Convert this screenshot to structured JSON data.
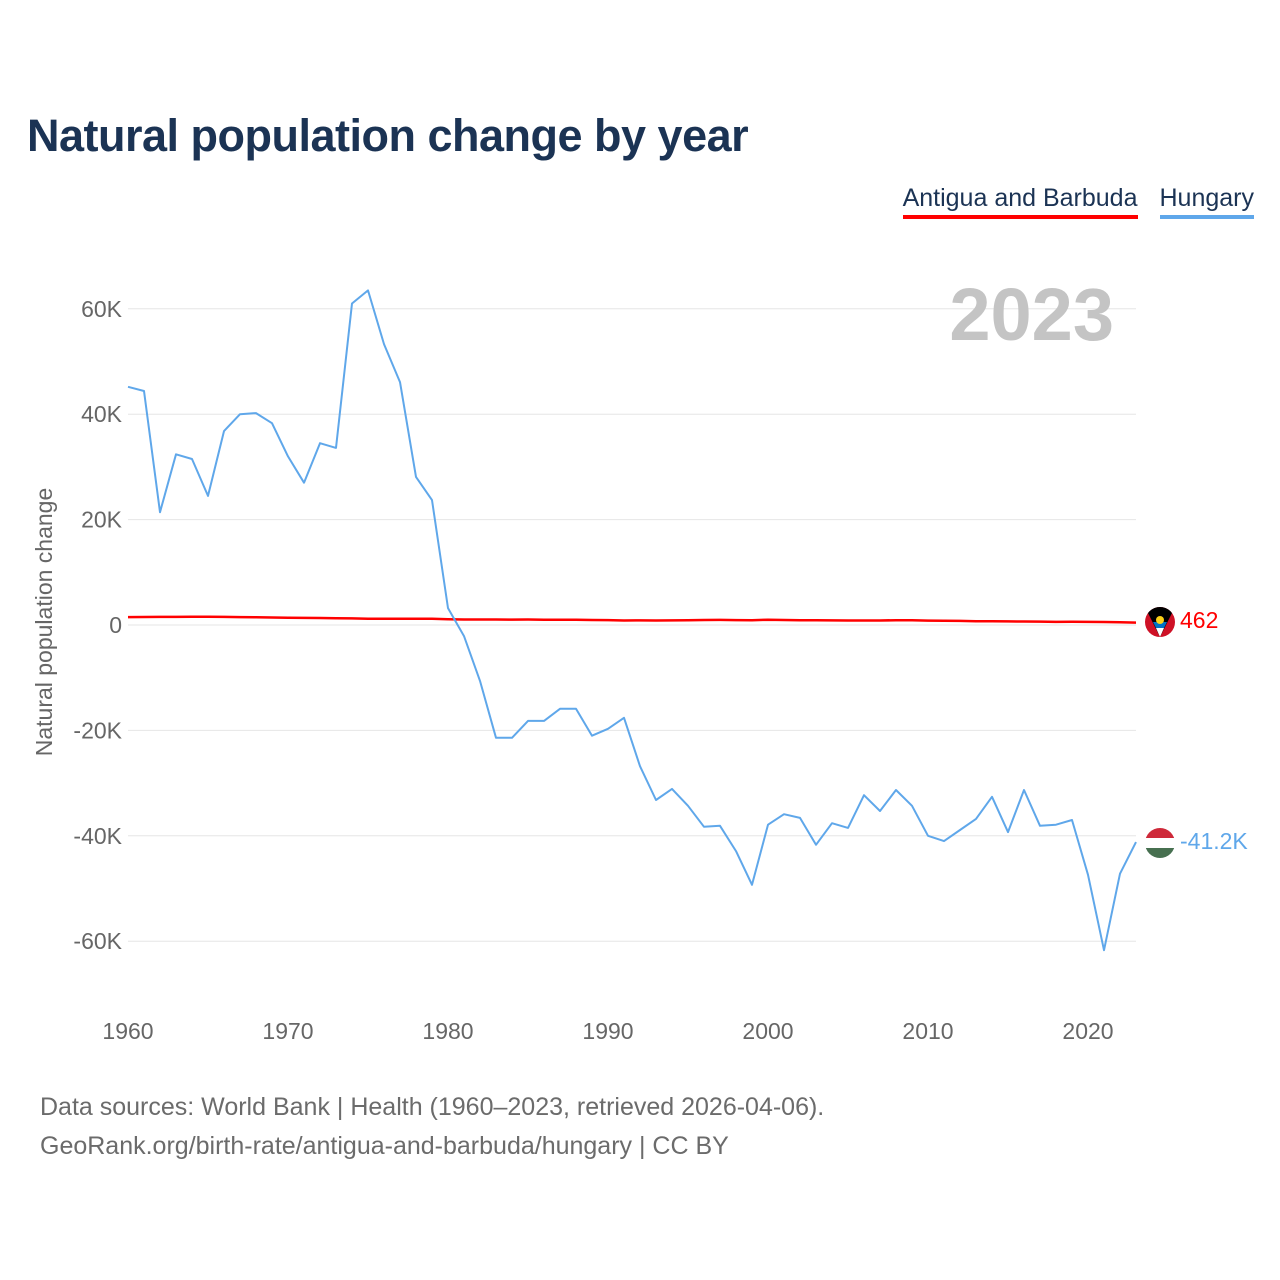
{
  "title": "Natural population change by year",
  "footer": {
    "line1": "Data sources: World Bank | Health (1960–2023, retrieved 2026-04-06).",
    "line2": "GeoRank.org/birth-rate/antigua-and-barbuda/hungary | CC BY"
  },
  "chart_data": {
    "type": "line",
    "title": "Natural population change by year",
    "ylabel": "Natural population change",
    "xlabel": "",
    "year_label": "2023",
    "ylim": [
      -70000,
      70000
    ],
    "xlim": [
      1960,
      2023
    ],
    "yticks": [
      60000,
      40000,
      20000,
      0,
      -20000,
      -40000,
      -60000
    ],
    "ytick_labels": [
      "60K",
      "40K",
      "20K",
      "0",
      "-20K",
      "-40K",
      "-60K"
    ],
    "xticks": [
      1960,
      1970,
      1980,
      1990,
      2000,
      2010,
      2020
    ],
    "xtick_labels": [
      "1960",
      "1970",
      "1980",
      "1990",
      "2000",
      "2010",
      "2020"
    ],
    "grid": true,
    "legend_position": "top-right",
    "x": [
      1960,
      1961,
      1962,
      1963,
      1964,
      1965,
      1966,
      1967,
      1968,
      1969,
      1970,
      1971,
      1972,
      1973,
      1974,
      1975,
      1976,
      1977,
      1978,
      1979,
      1980,
      1981,
      1982,
      1983,
      1984,
      1985,
      1986,
      1987,
      1988,
      1989,
      1990,
      1991,
      1992,
      1993,
      1994,
      1995,
      1996,
      1997,
      1998,
      1999,
      2000,
      2001,
      2002,
      2003,
      2004,
      2005,
      2006,
      2007,
      2008,
      2009,
      2010,
      2011,
      2012,
      2013,
      2014,
      2015,
      2016,
      2017,
      2018,
      2019,
      2020,
      2021,
      2022,
      2023
    ],
    "series": [
      {
        "name": "Antigua and Barbuda",
        "color": "#ff0000",
        "end_label": "462",
        "values": [
          1500,
          1520,
          1530,
          1540,
          1550,
          1550,
          1530,
          1500,
          1460,
          1420,
          1380,
          1350,
          1320,
          1290,
          1250,
          1200,
          1180,
          1200,
          1180,
          1200,
          1100,
          1050,
          1050,
          1040,
          1030,
          1050,
          1000,
          980,
          980,
          950,
          930,
          850,
          870,
          850,
          870,
          900,
          950,
          960,
          930,
          900,
          1000,
          950,
          920,
          900,
          880,
          860,
          850,
          860,
          920,
          900,
          830,
          800,
          780,
          720,
          700,
          690,
          660,
          640,
          580,
          600,
          590,
          560,
          520,
          462
        ]
      },
      {
        "name": "Hungary",
        "color": "#5fa7ea",
        "end_label": "-41.2K",
        "values": [
          45200,
          44400,
          21400,
          32400,
          31500,
          24500,
          36800,
          40000,
          40200,
          38300,
          32000,
          27000,
          34500,
          33600,
          61000,
          63500,
          53300,
          46100,
          28100,
          23700,
          3200,
          -2100,
          -10600,
          -21400,
          -21400,
          -18200,
          -18200,
          -15900,
          -15900,
          -21000,
          -19700,
          -17600,
          -26800,
          -33200,
          -31100,
          -34300,
          -38300,
          -38100,
          -42900,
          -49300,
          -37900,
          -35900,
          -36600,
          -41700,
          -37600,
          -38500,
          -32300,
          -35300,
          -31300,
          -34300,
          -40000,
          -41000,
          -38900,
          -36800,
          -32600,
          -39300,
          -31300,
          -38100,
          -37900,
          -37000,
          -47400,
          -61700,
          -47200,
          -41200
        ]
      }
    ]
  }
}
